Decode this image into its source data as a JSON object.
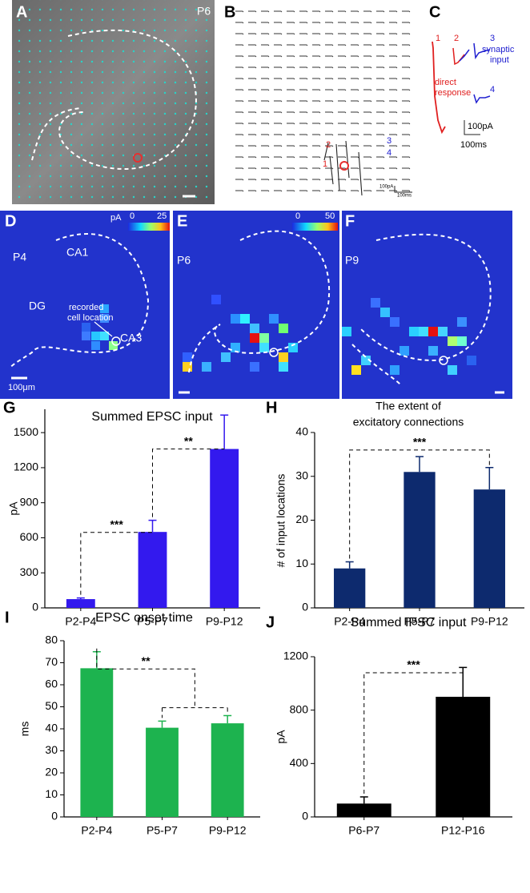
{
  "panels": {
    "a": {
      "letter": "A",
      "age": "P6"
    },
    "b": {
      "letter": "B",
      "trace_labels": [
        "1",
        "2",
        "3",
        "4"
      ],
      "scale_y": "100pA",
      "scale_x": "100ms"
    },
    "c": {
      "letter": "C",
      "trace_labels": [
        "1",
        "2",
        "3",
        "4"
      ],
      "synaptic": [
        "synaptic",
        "input"
      ],
      "direct": [
        "direct",
        "response"
      ],
      "scale_y": "100pA",
      "scale_x": "100ms"
    },
    "d": {
      "letter": "D",
      "age": "P4",
      "unit": "pA",
      "scale_min": 0,
      "scale_max": 25,
      "regions": [
        "CA1",
        "DG",
        "CA3"
      ],
      "cell_note": [
        "recorded",
        "cell location"
      ],
      "scale_bar": "100μm"
    },
    "e": {
      "letter": "E",
      "age": "P6",
      "scale_min": 0,
      "scale_max": 50
    },
    "f": {
      "letter": "F",
      "age": "P9"
    }
  },
  "chart_data": [
    {
      "type": "bar",
      "panel": "G",
      "title": "Summed EPSC input",
      "ylabel": "pA",
      "categories": [
        "P2-P4",
        "P5-P7",
        "P9-P12"
      ],
      "values": [
        75,
        650,
        1360
      ],
      "errors": [
        10,
        100,
        290
      ],
      "color": "#3319ee",
      "ylim": [
        0,
        1700
      ],
      "yticks": [
        0,
        300,
        600,
        900,
        1200,
        1500
      ],
      "annotations": [
        "***",
        "**"
      ]
    },
    {
      "type": "bar",
      "panel": "H",
      "title": [
        "The extent of",
        "excitatory connections"
      ],
      "ylabel": "# of input locations",
      "categories": [
        "P2-P4",
        "P5-P7",
        "P9-P12"
      ],
      "values": [
        9,
        31,
        27
      ],
      "errors": [
        1.5,
        3.5,
        5
      ],
      "color": "#0d2a6e",
      "ylim": [
        0,
        40
      ],
      "yticks": [
        0,
        10,
        20,
        30,
        40
      ],
      "annotations": [
        "***"
      ]
    },
    {
      "type": "bar",
      "panel": "I",
      "title": "EPSC onset time",
      "ylabel": "ms",
      "categories": [
        "P2-P4",
        "P5-P7",
        "P9-P12"
      ],
      "values": [
        67.5,
        40.5,
        42.5
      ],
      "errors": [
        7.5,
        3,
        3.5
      ],
      "color": "#1db34f",
      "ylim": [
        0,
        80
      ],
      "yticks": [
        0,
        10,
        20,
        30,
        40,
        50,
        60,
        70,
        80
      ],
      "annotations": [
        "**"
      ]
    },
    {
      "type": "bar",
      "panel": "J",
      "title": "Summed IPSC input",
      "ylabel": "pA",
      "categories": [
        "P6-P7",
        "P12-P16"
      ],
      "values": [
        100,
        900
      ],
      "errors": [
        50,
        220
      ],
      "color": "#000000",
      "ylim": [
        0,
        1200
      ],
      "yticks": [
        0,
        400,
        800,
        1200
      ],
      "annotations": [
        "***"
      ]
    }
  ]
}
